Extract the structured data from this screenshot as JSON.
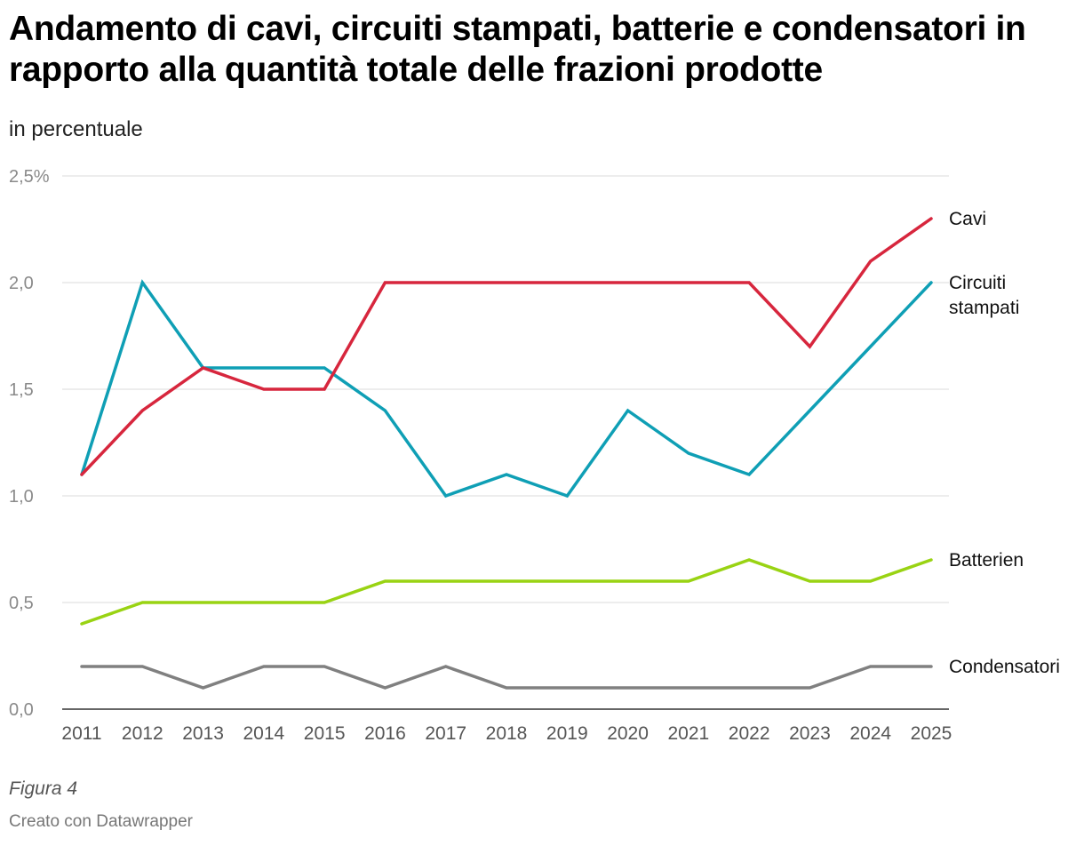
{
  "title": "Andamento di cavi, circuiti stampati, batterie e condensatori in rapporto alla quantità totale delle frazioni prodotte",
  "subtitle": "in percentuale",
  "caption": "Figura 4",
  "credit": "Creato con Datawrapper",
  "chart_data": {
    "type": "line",
    "x": [
      "2011",
      "2012",
      "2013",
      "2014",
      "2015",
      "2016",
      "2017",
      "2018",
      "2019",
      "2020",
      "2021",
      "2022",
      "2023",
      "2024",
      "2025"
    ],
    "ylim": [
      0,
      2.5
    ],
    "yticks": [
      {
        "value": 0,
        "label": "0,0"
      },
      {
        "value": 0.5,
        "label": "0,5"
      },
      {
        "value": 1,
        "label": "1,0"
      },
      {
        "value": 1.5,
        "label": "1,5"
      },
      {
        "value": 2,
        "label": "2,0"
      },
      {
        "value": 2.5,
        "label": "2,5%"
      }
    ],
    "grid": true,
    "legend": "direct labels at line ends",
    "series": [
      {
        "name": "Cavi",
        "color": "#d7263d",
        "values": [
          1.1,
          1.4,
          1.6,
          1.5,
          1.5,
          2.0,
          2.0,
          2.0,
          2.0,
          2.0,
          2.0,
          2.0,
          1.7,
          2.1,
          2.3
        ]
      },
      {
        "name": "Circuiti stampati",
        "color": "#0f9fb5",
        "values": [
          1.1,
          2.0,
          1.6,
          1.6,
          1.6,
          1.4,
          1.0,
          1.1,
          1.0,
          1.4,
          1.2,
          1.1,
          1.4,
          1.7,
          2.0
        ]
      },
      {
        "name": "Batterien",
        "color": "#99d313",
        "values": [
          0.4,
          0.5,
          0.5,
          0.5,
          0.5,
          0.6,
          0.6,
          0.6,
          0.6,
          0.6,
          0.6,
          0.7,
          0.6,
          0.6,
          0.7
        ]
      },
      {
        "name": "Condensatori",
        "color": "#808080",
        "values": [
          0.2,
          0.2,
          0.1,
          0.2,
          0.2,
          0.1,
          0.2,
          0.1,
          0.1,
          0.1,
          0.1,
          0.1,
          0.1,
          0.2,
          0.2
        ]
      }
    ]
  }
}
